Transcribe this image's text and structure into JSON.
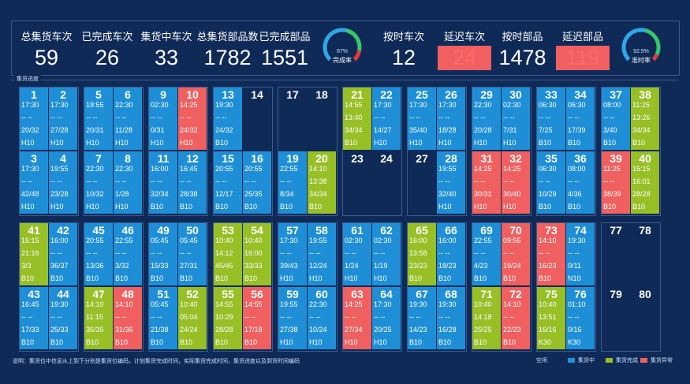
{
  "header": {
    "kpis": [
      {
        "label": "总集货车次",
        "value": "59",
        "color": "white"
      },
      {
        "label": "已完成车次",
        "value": "26",
        "color": "white"
      },
      {
        "label": "集货中车次",
        "value": "33",
        "color": "white"
      },
      {
        "label": "总集货部品数",
        "value": "1782",
        "color": "white"
      },
      {
        "label": "已完成部品",
        "value": "1551",
        "color": "white"
      },
      {
        "label": "按时车次",
        "value": "12",
        "color": "white"
      },
      {
        "label": "延迟车次",
        "value": "24",
        "color": "red"
      },
      {
        "label": "按时部品",
        "value": "1478",
        "color": "white"
      },
      {
        "label": "延迟部品",
        "value": "119",
        "color": "red"
      }
    ],
    "gauges": [
      {
        "percent": "87%",
        "caption": "完成率",
        "fraction": 0.87
      },
      {
        "percent": "92.5%",
        "caption": "准时率",
        "fraction": 0.925
      }
    ]
  },
  "section_title": "集货进度",
  "cells": [
    {
      "num": "1",
      "status": "blue",
      "lines": [
        "17:30",
        "-- --",
        "20/32",
        "H10"
      ]
    },
    {
      "num": "2",
      "status": "blue",
      "lines": [
        "17:30",
        "-- --",
        "27/28",
        "H10"
      ]
    },
    {
      "num": "3",
      "status": "blue",
      "lines": [
        "17:30",
        "-- --",
        "42/48",
        "H10"
      ]
    },
    {
      "num": "4",
      "status": "blue",
      "lines": [
        "19:55",
        "-- --",
        "23/28",
        "H10"
      ]
    },
    {
      "num": "5",
      "status": "blue",
      "lines": [
        "19:55",
        "-- --",
        "20/31",
        "H10"
      ]
    },
    {
      "num": "6",
      "status": "blue",
      "lines": [
        "22:30",
        "-- --",
        "11/28",
        "H10"
      ]
    },
    {
      "num": "7",
      "status": "blue",
      "lines": [
        "22:30",
        "-- --",
        "10/32",
        "H10"
      ]
    },
    {
      "num": "8",
      "status": "blue",
      "lines": [
        "22:30",
        "-- --",
        "1/28",
        "H10"
      ]
    },
    {
      "num": "9",
      "status": "blue",
      "lines": [
        "02:30",
        "-- --",
        "0/31",
        "H10"
      ]
    },
    {
      "num": "10",
      "status": "red",
      "lines": [
        "14:25",
        "-- --",
        "24/32",
        "H10"
      ]
    },
    {
      "num": "11",
      "status": "blue",
      "lines": [
        "16:00",
        "-- --",
        "32/34",
        "B10"
      ]
    },
    {
      "num": "12",
      "status": "blue",
      "lines": [
        "16:45",
        "-- --",
        "28/38",
        "B10"
      ]
    },
    {
      "num": "13",
      "status": "blue",
      "lines": [
        "19:30",
        "-- --",
        "24/32",
        "B10"
      ]
    },
    {
      "num": "14",
      "status": "empty",
      "lines": []
    },
    {
      "num": "15",
      "status": "blue",
      "lines": [
        "20:55",
        "-- --",
        "12/17",
        "B10"
      ]
    },
    {
      "num": "16",
      "status": "blue",
      "lines": [
        "20:55",
        "-- --",
        "25/35",
        "B10"
      ]
    },
    {
      "num": "17",
      "status": "empty",
      "lines": []
    },
    {
      "num": "18",
      "status": "empty",
      "lines": []
    },
    {
      "num": "19",
      "status": "blue",
      "lines": [
        "22:55",
        "-- --",
        "8/34",
        "B10"
      ]
    },
    {
      "num": "20",
      "status": "green",
      "lines": [
        "14:10",
        "13:38",
        "34/34",
        "B10"
      ]
    },
    {
      "num": "21",
      "status": "green",
      "lines": [
        "14:55",
        "13:40",
        "34/34",
        "B10"
      ]
    },
    {
      "num": "22",
      "status": "blue",
      "lines": [
        "17:30",
        "-- --",
        "14/27",
        "H10"
      ]
    },
    {
      "num": "23",
      "status": "empty",
      "lines": []
    },
    {
      "num": "24",
      "status": "empty",
      "lines": []
    },
    {
      "num": "25",
      "status": "blue",
      "lines": [
        "17:30",
        "-- --",
        "35/40",
        "H10"
      ]
    },
    {
      "num": "26",
      "status": "blue",
      "lines": [
        "17:30",
        "-- --",
        "18/28",
        "H10"
      ]
    },
    {
      "num": "27",
      "status": "empty",
      "lines": []
    },
    {
      "num": "28",
      "status": "blue",
      "lines": [
        "19:55",
        "-- --",
        "32/40",
        "H10"
      ]
    },
    {
      "num": "29",
      "status": "blue",
      "lines": [
        "22:30",
        "-- --",
        "20/28",
        "H10"
      ]
    },
    {
      "num": "30",
      "status": "blue",
      "lines": [
        "02:30",
        "-- --",
        "7/31",
        "H10"
      ]
    },
    {
      "num": "31",
      "status": "red",
      "lines": [
        "14:25",
        "-- --",
        "30/31",
        "H10"
      ]
    },
    {
      "num": "32",
      "status": "red",
      "lines": [
        "14:25",
        "-- --",
        "30/40",
        "H10"
      ]
    },
    {
      "num": "33",
      "status": "blue",
      "lines": [
        "06:30",
        "-- --",
        "7/25",
        "B10"
      ]
    },
    {
      "num": "34",
      "status": "blue",
      "lines": [
        "06:30",
        "-- --",
        "17/39",
        "B10"
      ]
    },
    {
      "num": "35",
      "status": "blue",
      "lines": [
        "06:30",
        "-- --",
        "10/29",
        "B10"
      ]
    },
    {
      "num": "36",
      "status": "blue",
      "lines": [
        "08:00",
        "-- --",
        "4/36",
        "B10"
      ]
    },
    {
      "num": "37",
      "status": "blue",
      "lines": [
        "08:00",
        "-- --",
        "3/40",
        "B10"
      ]
    },
    {
      "num": "38",
      "status": "green",
      "lines": [
        "11:25",
        "13:26",
        "34/34",
        "B10"
      ]
    },
    {
      "num": "39",
      "status": "red",
      "lines": [
        "11:25",
        "-- --",
        "38/39",
        "B10"
      ]
    },
    {
      "num": "40",
      "status": "green",
      "lines": [
        "15:15",
        "16:01",
        "28/28",
        "B10"
      ]
    },
    {
      "num": "41",
      "status": "green",
      "lines": [
        "15:15",
        "21:16",
        "3/3",
        "B10"
      ]
    },
    {
      "num": "42",
      "status": "blue",
      "lines": [
        "16:00",
        "-- --",
        "36/37",
        "B10"
      ]
    },
    {
      "num": "43",
      "status": "blue",
      "lines": [
        "16:45",
        "-- --",
        "17/33",
        "B10"
      ]
    },
    {
      "num": "44",
      "status": "blue",
      "lines": [
        "19:30",
        "-- --",
        "25/33",
        "B10"
      ]
    },
    {
      "num": "45",
      "status": "blue",
      "lines": [
        "20:55",
        "-- --",
        "13/36",
        "B10"
      ]
    },
    {
      "num": "46",
      "status": "blue",
      "lines": [
        "22:55",
        "-- --",
        "3/32",
        "B10"
      ]
    },
    {
      "num": "47",
      "status": "green",
      "lines": [
        "14:10",
        "11:15",
        "35/35",
        "B10"
      ]
    },
    {
      "num": "48",
      "status": "red",
      "lines": [
        "14:10",
        "-- --",
        "31/36",
        "B10"
      ]
    },
    {
      "num": "49",
      "status": "blue",
      "lines": [
        "05:45",
        "-- --",
        "15/33",
        "B10"
      ]
    },
    {
      "num": "50",
      "status": "blue",
      "lines": [
        "05:45",
        "-- --",
        "27/31",
        "B10"
      ]
    },
    {
      "num": "51",
      "status": "blue",
      "lines": [
        "05:45",
        "-- --",
        "21/38",
        "B10"
      ]
    },
    {
      "num": "52",
      "status": "green",
      "lines": [
        "10:40",
        "05:04",
        "24/24",
        "B10"
      ]
    },
    {
      "num": "53",
      "status": "green",
      "lines": [
        "10:40",
        "14:12",
        "45/45",
        "B10"
      ]
    },
    {
      "num": "54",
      "status": "green",
      "lines": [
        "10:40",
        "16:00",
        "33/33",
        "B10"
      ]
    },
    {
      "num": "55",
      "status": "green",
      "lines": [
        "14:55",
        "10:29",
        "28/28",
        "B10"
      ]
    },
    {
      "num": "56",
      "status": "red",
      "lines": [
        "14:55",
        "-- --",
        "17/18",
        "B10"
      ]
    },
    {
      "num": "57",
      "status": "blue",
      "lines": [
        "17:30",
        "-- --",
        "39/43",
        "H10"
      ]
    },
    {
      "num": "58",
      "status": "blue",
      "lines": [
        "19:55",
        "-- --",
        "12/24",
        "H10"
      ]
    },
    {
      "num": "59",
      "status": "blue",
      "lines": [
        "19:55",
        "-- --",
        "27/38",
        "H10"
      ]
    },
    {
      "num": "60",
      "status": "blue",
      "lines": [
        "22:30",
        "-- --",
        "10/24",
        "H10"
      ]
    },
    {
      "num": "61",
      "status": "blue",
      "lines": [
        "02:30",
        "-- --",
        "1/24",
        "H10"
      ]
    },
    {
      "num": "62",
      "status": "blue",
      "lines": [
        "02:30",
        "-- --",
        "1/19",
        "H10"
      ]
    },
    {
      "num": "63",
      "status": "red",
      "lines": [
        "14:25",
        "-- --",
        "27/34",
        "H10"
      ]
    },
    {
      "num": "64",
      "status": "blue",
      "lines": [
        "17:30",
        "-- --",
        "20/25",
        "H10"
      ]
    },
    {
      "num": "65",
      "status": "green",
      "lines": [
        "16:00",
        "13:58",
        "23/23",
        "B10"
      ]
    },
    {
      "num": "66",
      "status": "blue",
      "lines": [
        "16:00",
        "-- --",
        "18/23",
        "B10"
      ]
    },
    {
      "num": "67",
      "status": "blue",
      "lines": [
        "19:30",
        "-- --",
        "14/23",
        "B10"
      ]
    },
    {
      "num": "68",
      "status": "blue",
      "lines": [
        "19:30",
        "-- --",
        "16/28",
        "B10"
      ]
    },
    {
      "num": "69",
      "status": "blue",
      "lines": [
        "22:55",
        "-- --",
        "4/23",
        "B10"
      ]
    },
    {
      "num": "70",
      "status": "red",
      "lines": [
        "09:55",
        "-- --",
        "19/24",
        "B10"
      ]
    },
    {
      "num": "71",
      "status": "green",
      "lines": [
        "10:40",
        "14:18",
        "25/25",
        "B10"
      ]
    },
    {
      "num": "72",
      "status": "red",
      "lines": [
        "14:10",
        "-- --",
        "22/23",
        "B10"
      ]
    },
    {
      "num": "73",
      "status": "red",
      "lines": [
        "14:10",
        "-- --",
        "16/23",
        "B10"
      ]
    },
    {
      "num": "74",
      "status": "blue",
      "lines": [
        "19:30",
        "-- --",
        "0/11",
        "N10"
      ]
    },
    {
      "num": "75",
      "status": "green",
      "lines": [
        "10:40",
        "13:51",
        "16/16",
        "K30"
      ]
    },
    {
      "num": "76",
      "status": "blue",
      "lines": [
        "01:10",
        "-- --",
        "0/16",
        "K30"
      ]
    },
    {
      "num": "77",
      "status": "empty",
      "lines": []
    },
    {
      "num": "78",
      "status": "empty",
      "lines": []
    },
    {
      "num": "79",
      "status": "empty",
      "lines": []
    },
    {
      "num": "80",
      "status": "empty",
      "lines": []
    }
  ],
  "footer": {
    "note": "说明：集货位中信息从上到下分别是集货位编码，计划集货完成时间，实际集货完成时间，集货进度以及到货时间编码",
    "legend": [
      {
        "label": "空闲",
        "color": "#0f2a57"
      },
      {
        "label": "集货中",
        "color": "#1e8fd7"
      },
      {
        "label": "集货完成",
        "color": "#97bf26"
      },
      {
        "label": "集货异常",
        "color": "#f06060"
      }
    ]
  }
}
